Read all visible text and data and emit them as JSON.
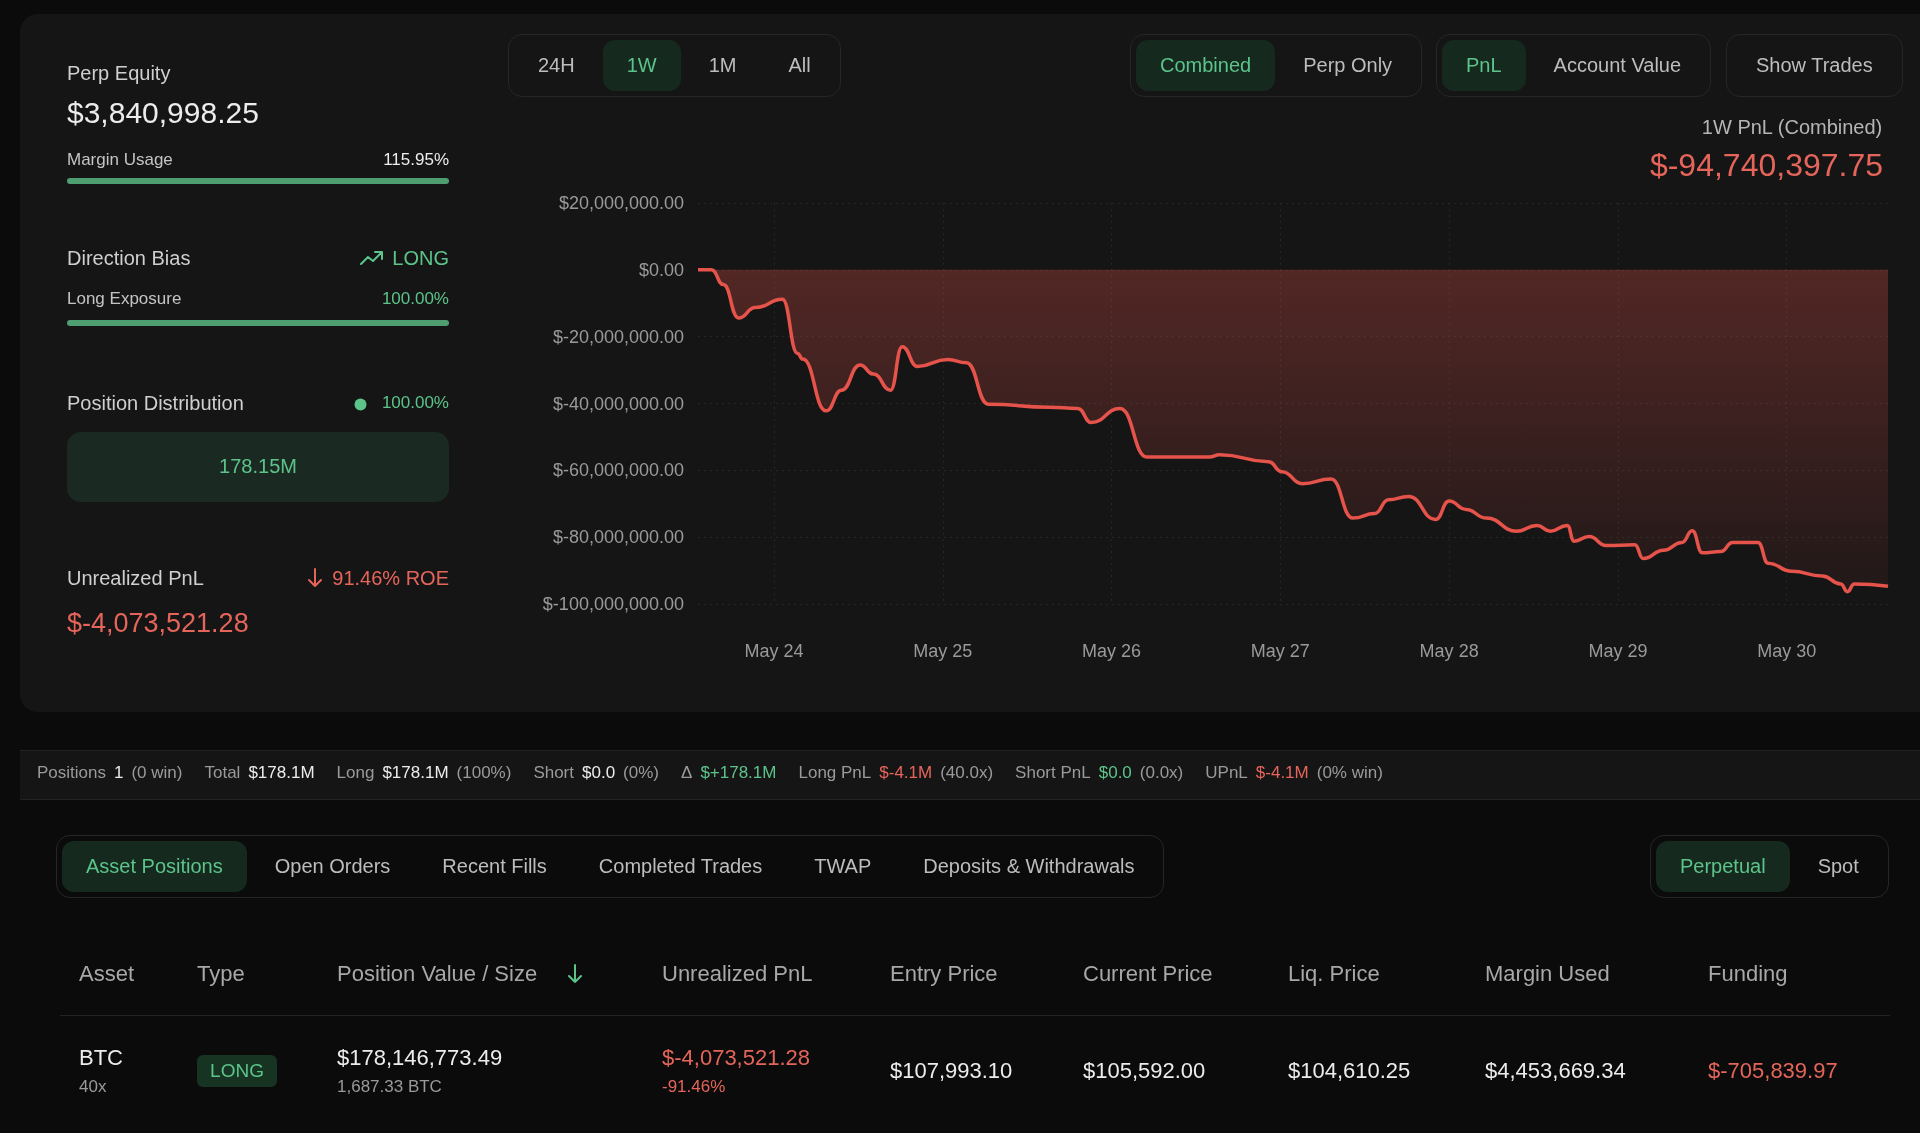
{
  "chart_data": [
    {
      "type": "area",
      "title": "1W PnL (Combined)",
      "subtitle": "$-94,740,397.75",
      "annotations": [
        "24H",
        "1W",
        "1M",
        "All",
        "Combined",
        "Perp Only",
        "PnL",
        "Account Value",
        "Show Trades"
      ],
      "x": [
        "--05-23T13:12",
        "--05-23T15:07",
        "--05-23T16:48",
        "--05-23T18:58",
        "--05-23T21:22",
        "--05-24T01:12",
        "--05-24T03:22",
        "--05-24T04:05",
        "--05-24T07:26",
        "--05-24T09:36",
        "--05-24T12:14",
        "--05-24T14:10",
        "--05-24T16:34",
        "--05-24T18:14",
        "--05-24T20:24",
        "--05-25T00:43",
        "--05-25T03:22",
        "--05-25T06:29",
        "--05-25T15:07",
        "--05-25T19:12",
        "--05-25T21:07",
        "--05-26T01:12",
        "--05-26T05:02",
        "--05-26T13:55",
        "--05-26T15:22",
        "--05-26T22:19",
        "--05-27T00:14",
        "--05-27T03:07",
        "--05-27T07:12",
        "--05-27T10:19",
        "--05-27T13:26",
        "--05-27T15:22",
        "--05-27T18:14",
        "--05-27T22:05",
        "--05-28T00:00",
        "--05-28T02:24",
        "--05-28T05:17",
        "--05-28T09:36",
        "--05-28T12:29",
        "--05-28T14:24",
        "--05-28T16:48",
        "--05-28T17:46",
        "--05-28T19:55",
        "--05-28T22:19",
        "--05-29T02:24",
        "--05-29T03:36",
        "--05-29T06:29",
        "--05-29T09:07",
        "--05-29T10:34",
        "--05-29T12:00",
        "--05-29T14:38",
        "--05-29T16:19",
        "--05-29T19:55",
        "--05-29T21:22",
        "--05-30T00:43",
        "--05-30T05:02",
        "--05-30T07:41",
        "--05-30T08:38",
        "--05-30T09:36",
        "--05-30T14:24"
      ],
      "series": [
        {
          "color": "#e5534b",
          "values": [
            0,
            0,
            -4400000,
            -14400000,
            -11300000,
            -8800000,
            -25000000,
            -26700000,
            -42200000,
            -36000000,
            -28500000,
            -31200000,
            -36000000,
            -23000000,
            -28900000,
            -26800000,
            -27800000,
            -40200000,
            -41100000,
            -41500000,
            -45700000,
            -41500000,
            -56000000,
            -56000000,
            -55300000,
            -57400000,
            -60400000,
            -64000000,
            -62600000,
            -74300000,
            -72900000,
            -68800000,
            -67800000,
            -74700000,
            -69200000,
            -71700000,
            -74300000,
            -78200000,
            -76500000,
            -78200000,
            -76500000,
            -81200000,
            -79800000,
            -82500000,
            -82300000,
            -86400000,
            -83900000,
            -81600000,
            -78100000,
            -84700000,
            -84300000,
            -81600000,
            -81600000,
            -87800000,
            -90200000,
            -91600000,
            -94000000,
            -96300000,
            -94000000,
            -94700000
          ]
        }
      ],
      "xlim": [
        "--05-23T13:12",
        "--05-30T14:24"
      ],
      "xticks": [
        {
          "value": "--05-24",
          "label": "May 24"
        },
        {
          "value": "--05-25",
          "label": "May 25"
        },
        {
          "value": "--05-26",
          "label": "May 26"
        },
        {
          "value": "--05-27",
          "label": "May 27"
        },
        {
          "value": "--05-28",
          "label": "May 28"
        },
        {
          "value": "--05-29",
          "label": "May 29"
        },
        {
          "value": "--05-30",
          "label": "May 30"
        }
      ],
      "ylim": [
        -100000000,
        20000000
      ],
      "yticks": [
        {
          "value": 20000000,
          "label": "$20,000,000.00"
        },
        {
          "value": 0,
          "label": "$0.00"
        },
        {
          "value": -20000000,
          "label": "$-20,000,000.00"
        },
        {
          "value": -40000000,
          "label": "$-40,000,000.00"
        },
        {
          "value": -60000000,
          "label": "$-60,000,000.00"
        },
        {
          "value": -80000000,
          "label": "$-80,000,000.00"
        },
        {
          "value": -100000000,
          "label": "$-100,000,000.00"
        }
      ],
      "grid": true
    },
    {
      "type": "other",
      "annotations": [
        "Perp Equity",
        "$3,840,998.25",
        "Margin Usage",
        "115.95%",
        "Direction Bias",
        "LONG",
        "Long Exposure",
        "100.00%",
        "Position Distribution",
        "100.00%",
        "178.15M",
        "Unrealized PnL",
        "91.46% ROE",
        "$-4,073,521.28",
        "Positions",
        "1",
        "(0 win)",
        "Total",
        "$178.1M",
        "Long",
        "$178.1M",
        "(100%)",
        "Short",
        "$0.0",
        "(0%)",
        "Δ",
        "$+178.1M",
        "Long PnL",
        "$-4.1M",
        "(40.0x)",
        "Short PnL",
        "$0.0",
        "(0.0x)",
        "UPnL",
        "$-4.1M",
        "(0% win)",
        "Asset Positions",
        "Open Orders",
        "Recent Fills",
        "Completed Trades",
        "TWAP",
        "Deposits & Withdrawals",
        "Perpetual",
        "Spot",
        "Asset",
        "Type",
        "Position Value / Size",
        "Unrealized PnL",
        "Entry Price",
        "Current Price",
        "Liq. Price",
        "Margin Used",
        "Funding",
        "BTC",
        "40x",
        "LONG",
        "$178,146,773.49",
        "1,687.33 BTC",
        "$-4,073,521.28",
        "-91.46%",
        "$107,993.10",
        "$105,592.00",
        "$104,610.25",
        "$4,453,669.34",
        "$-705,839.97"
      ]
    }
  ]
}
